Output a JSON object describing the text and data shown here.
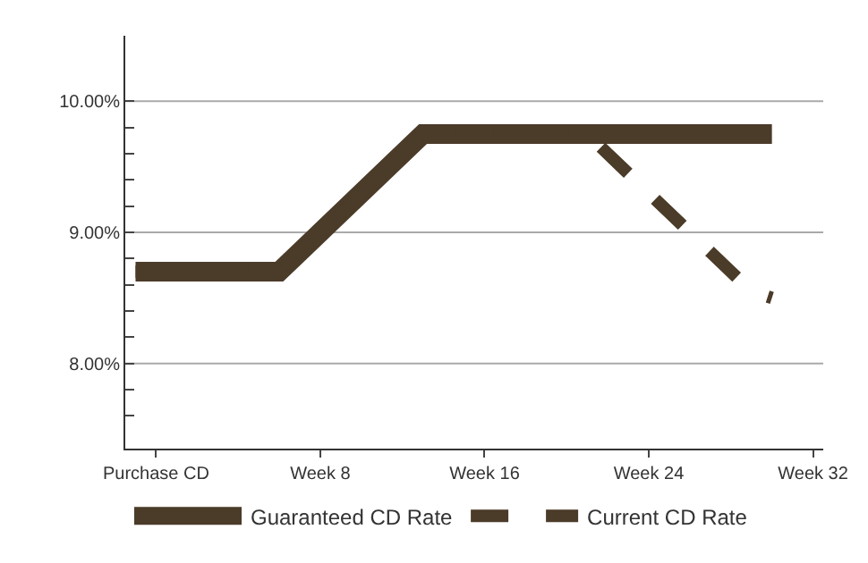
{
  "chart_data": {
    "type": "line",
    "categories": [
      null,
      "Purchase CD",
      null,
      null,
      null,
      null,
      null,
      null,
      null,
      "Week 8",
      null,
      null,
      null,
      null,
      null,
      null,
      null,
      "Week 16",
      null,
      null,
      null,
      null,
      null,
      null,
      null,
      "Week 24",
      null,
      null,
      null,
      null,
      null,
      null,
      null,
      "Week 32"
    ],
    "series": [
      {
        "name": "Guaranteed CD Rate",
        "color": "#4b3b29",
        "line_style": "solid",
        "values": [
          8.7,
          8.7,
          8.7,
          8.7,
          8.7,
          8.7,
          8.7,
          8.7,
          8.85,
          9.0,
          9.15,
          9.3,
          9.45,
          9.6,
          9.75,
          9.75,
          9.75,
          9.75,
          9.75,
          9.75,
          9.75,
          9.75,
          9.75,
          9.75,
          9.75,
          9.75,
          9.75,
          9.75,
          9.75,
          9.75,
          9.75,
          9.75,
          null,
          null
        ]
      },
      {
        "name": "Current CD Rate",
        "color": "#4b3b29",
        "line_style": "dashed",
        "values": [
          8.7,
          8.7,
          8.7,
          8.7,
          8.7,
          8.7,
          8.7,
          8.7,
          8.85,
          9.0,
          9.15,
          9.3,
          9.45,
          9.6,
          9.75,
          9.75,
          9.75,
          9.75,
          9.75,
          9.75,
          9.75,
          9.75,
          9.75,
          9.6,
          9.45,
          9.3,
          9.15,
          9.0,
          8.85,
          8.7,
          8.55,
          8.5,
          null,
          null
        ]
      }
    ],
    "ylim": [
      7.35,
      10.5
    ],
    "yticks": [
      {
        "value": 7.6,
        "label": null
      },
      {
        "value": 7.8,
        "label": null
      },
      {
        "value": 8,
        "label": "8.00%"
      },
      {
        "value": 8.2,
        "label": null
      },
      {
        "value": 8.4,
        "label": null
      },
      {
        "value": 8.6,
        "label": null
      },
      {
        "value": 8.8,
        "label": null
      },
      {
        "value": 9,
        "label": "9.00%"
      },
      {
        "value": 9.2,
        "label": null
      },
      {
        "value": 9.4,
        "label": null
      },
      {
        "value": 9.6,
        "label": null
      },
      {
        "value": 9.8,
        "label": null
      },
      {
        "value": 10,
        "label": "10.00%"
      }
    ],
    "grid": "y",
    "legend": "bottom"
  }
}
